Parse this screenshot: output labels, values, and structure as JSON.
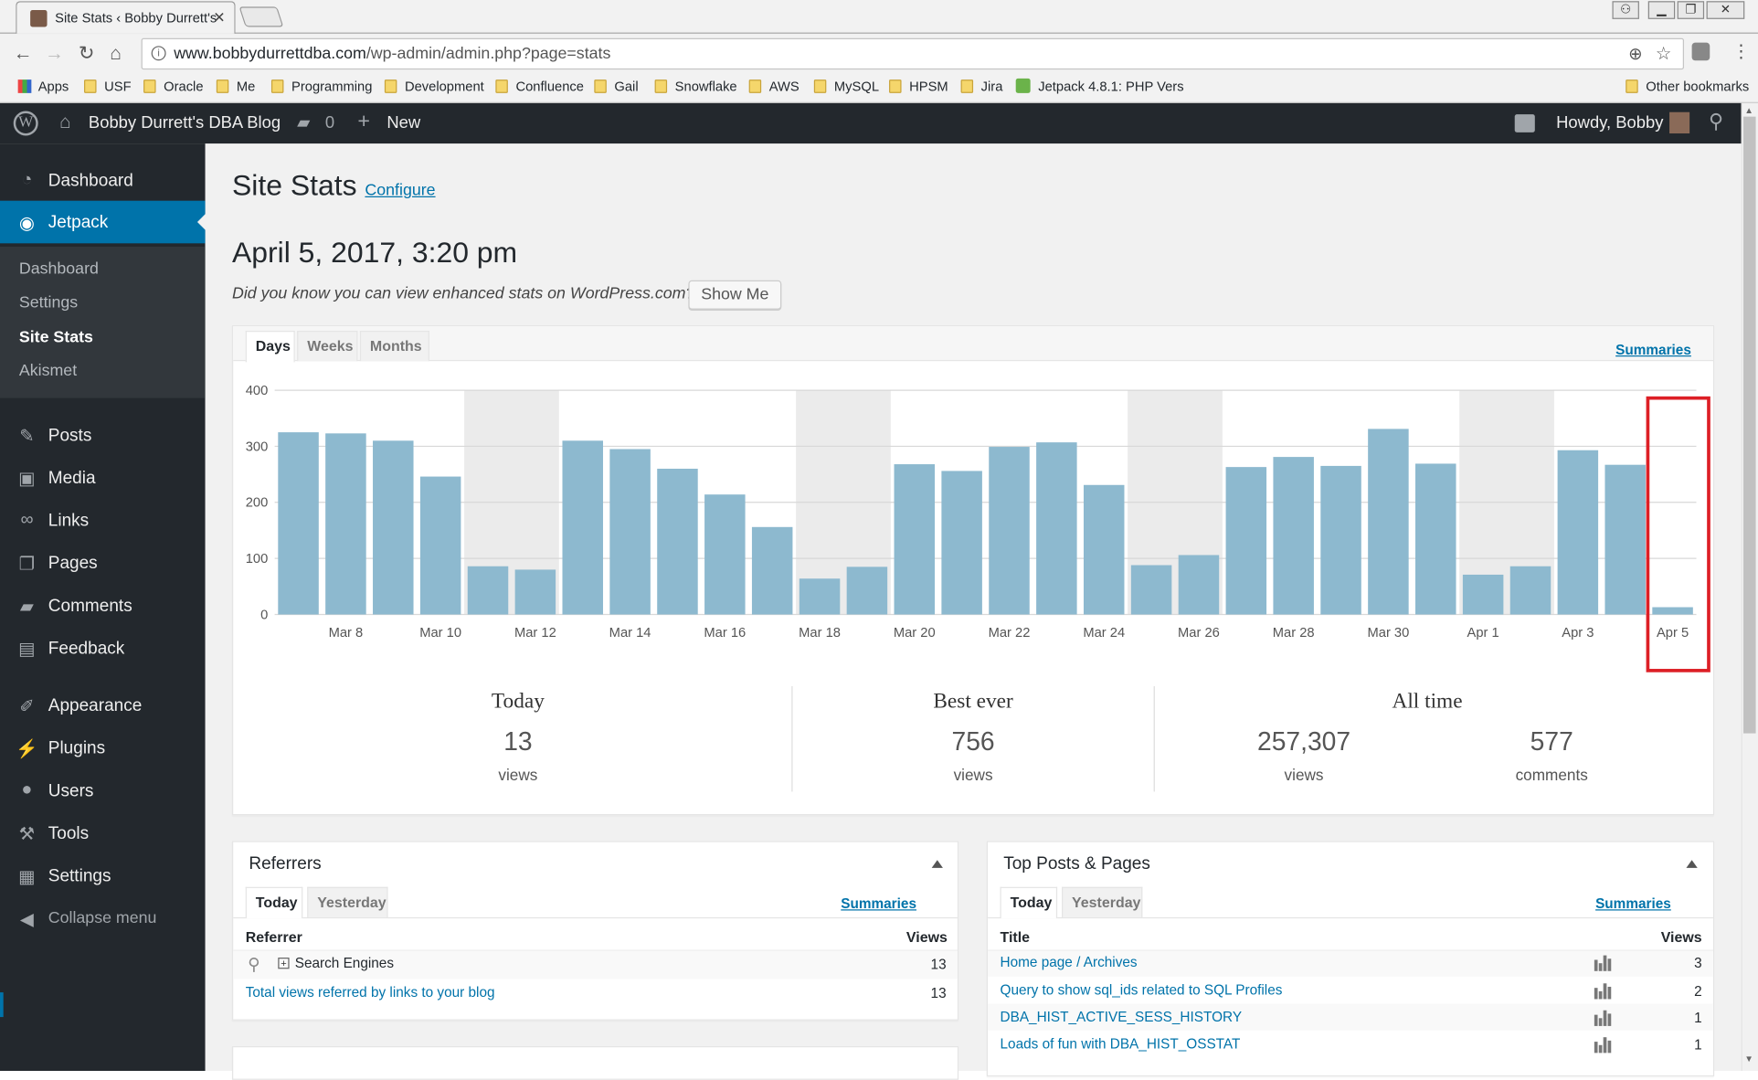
{
  "browser": {
    "tab_title": "Site Stats ‹ Bobby Durrett's",
    "url_host": "www.bobbydurrettdba.com",
    "url_path": "/wp-admin/admin.php?page=stats",
    "bookmarks": [
      "Apps",
      "USF",
      "Oracle",
      "Me",
      "Programming",
      "Development",
      "Confluence",
      "Gail",
      "Snowflake",
      "AWS",
      "MySQL",
      "HPSM",
      "Jira",
      "Jetpack 4.8.1: PHP Vers"
    ],
    "other_bookmarks": "Other bookmarks"
  },
  "adminbar": {
    "site_name": "Bobby Durrett's DBA Blog",
    "comments_count": "0",
    "new_label": "New",
    "howdy": "Howdy, Bobby"
  },
  "sidebar": {
    "dashboard": "Dashboard",
    "jetpack": "Jetpack",
    "submenu": [
      "Dashboard",
      "Settings",
      "Site Stats",
      "Akismet"
    ],
    "items": [
      "Posts",
      "Media",
      "Links",
      "Pages",
      "Comments",
      "Feedback",
      "Appearance",
      "Plugins",
      "Users",
      "Tools",
      "Settings"
    ],
    "collapse": "Collapse menu"
  },
  "page": {
    "title": "Site Stats",
    "configure": "Configure",
    "datetime": "April 5, 2017, 3:20 pm",
    "prompt": "Did you know you can view enhanced stats on WordPress.com?",
    "show_me": "Show Me"
  },
  "stats_tabs": [
    "Days",
    "Weeks",
    "Months"
  ],
  "summaries": "Summaries",
  "chart_data": {
    "type": "bar",
    "ylim": [
      0,
      400
    ],
    "yticks": [
      0,
      100,
      200,
      300,
      400
    ],
    "categories": [
      "Mar 7",
      "Mar 8",
      "Mar 9",
      "Mar 10",
      "Mar 11",
      "Mar 12",
      "Mar 13",
      "Mar 14",
      "Mar 15",
      "Mar 16",
      "Mar 17",
      "Mar 18",
      "Mar 19",
      "Mar 20",
      "Mar 21",
      "Mar 22",
      "Mar 23",
      "Mar 24",
      "Mar 25",
      "Mar 26",
      "Mar 27",
      "Mar 28",
      "Mar 29",
      "Mar 30",
      "Mar 31",
      "Apr 1",
      "Apr 2",
      "Apr 3",
      "Apr 4",
      "Apr 5"
    ],
    "xtick_labels": [
      "Mar 8",
      "Mar 10",
      "Mar 12",
      "Mar 14",
      "Mar 16",
      "Mar 18",
      "Mar 20",
      "Mar 22",
      "Mar 24",
      "Mar 26",
      "Mar 28",
      "Mar 30",
      "Apr 1",
      "Apr 3",
      "Apr 5"
    ],
    "values": [
      325,
      323,
      310,
      246,
      86,
      80,
      310,
      295,
      260,
      214,
      156,
      64,
      85,
      268,
      256,
      299,
      307,
      231,
      88,
      106,
      263,
      281,
      265,
      331,
      269,
      71,
      86,
      293,
      267,
      13
    ],
    "weekend_shading": [
      [
        4,
        5
      ],
      [
        11,
        12
      ],
      [
        18,
        19
      ],
      [
        25,
        26
      ]
    ],
    "bar_color": "#8db9cf",
    "highlight_color": "#dd1f26",
    "highlight_index": 29
  },
  "summary": {
    "today_label": "Today",
    "today_value": "13",
    "best_label": "Best ever",
    "best_value": "756",
    "alltime_label": "All time",
    "alltime_views": "257,307",
    "alltime_comments": "577",
    "views": "views",
    "comments": "comments"
  },
  "referrers": {
    "title": "Referrers",
    "tabs": [
      "Today",
      "Yesterday"
    ],
    "col_referrer": "Referrer",
    "col_views": "Views",
    "rows": [
      {
        "label": "Search Engines",
        "views": "13"
      }
    ],
    "total_label": "Total views referred by links to your blog",
    "total_views": "13"
  },
  "top_posts": {
    "title": "Top Posts & Pages",
    "tabs": [
      "Today",
      "Yesterday"
    ],
    "col_title": "Title",
    "col_views": "Views",
    "rows": [
      {
        "title": "Home page / Archives",
        "views": "3"
      },
      {
        "title": "Query to show sql_ids related to SQL Profiles",
        "views": "2"
      },
      {
        "title": "DBA_HIST_ACTIVE_SESS_HISTORY",
        "views": "1"
      },
      {
        "title": "Loads of fun with DBA_HIST_OSSTAT",
        "views": "1"
      }
    ]
  }
}
